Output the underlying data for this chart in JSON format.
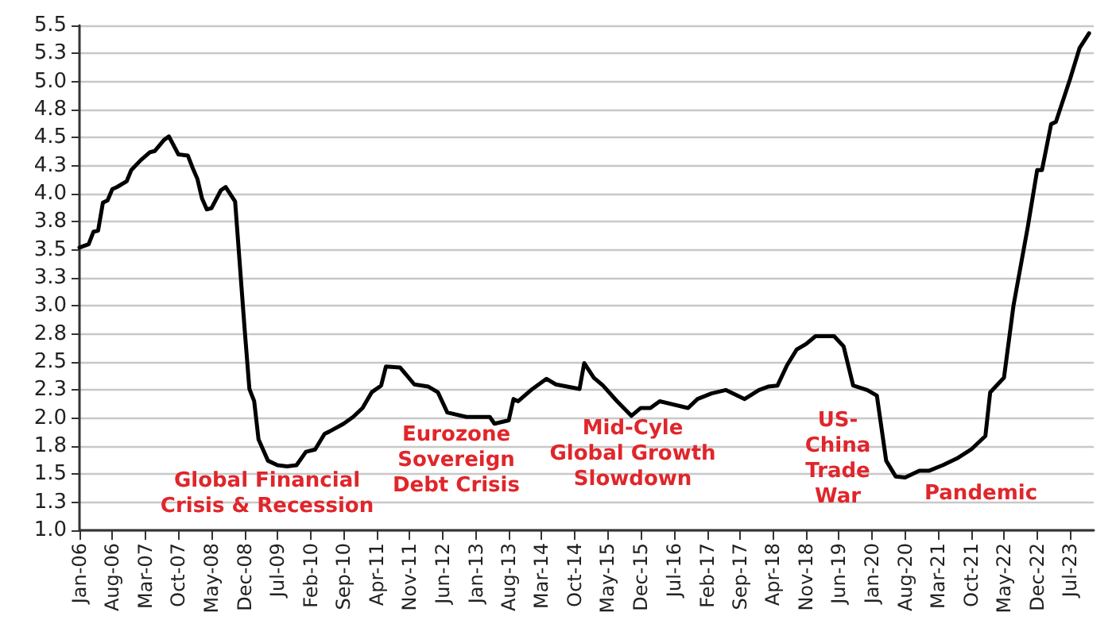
{
  "chart_data": {
    "type": "line",
    "grid": "y",
    "marker": "none",
    "line_style": "solid",
    "xlim": [
      "2006-01",
      "2023-12"
    ],
    "xticks": [
      {
        "value": "2006-01",
        "label": "Jan-06"
      },
      {
        "value": "2006-08",
        "label": "Aug-06"
      },
      {
        "value": "2007-03",
        "label": "Mar-07"
      },
      {
        "value": "2007-10",
        "label": "Oct-07"
      },
      {
        "value": "2008-05",
        "label": "May-08"
      },
      {
        "value": "2008-12",
        "label": "Dec-08"
      },
      {
        "value": "2009-07",
        "label": "Jul-09"
      },
      {
        "value": "2010-02",
        "label": "Feb-10"
      },
      {
        "value": "2010-09",
        "label": "Sep-10"
      },
      {
        "value": "2011-04",
        "label": "Apr-11"
      },
      {
        "value": "2011-11",
        "label": "Nov-11"
      },
      {
        "value": "2012-06",
        "label": "Jun-12"
      },
      {
        "value": "2013-01",
        "label": "Jan-13"
      },
      {
        "value": "2013-08",
        "label": "Aug-13"
      },
      {
        "value": "2014-03",
        "label": "Mar-14"
      },
      {
        "value": "2014-10",
        "label": "Oct-14"
      },
      {
        "value": "2015-05",
        "label": "May-15"
      },
      {
        "value": "2015-12",
        "label": "Dec-15"
      },
      {
        "value": "2016-07",
        "label": "Jul-16"
      },
      {
        "value": "2017-02",
        "label": "Feb-17"
      },
      {
        "value": "2017-09",
        "label": "Sep-17"
      },
      {
        "value": "2018-04",
        "label": "Apr-18"
      },
      {
        "value": "2018-11",
        "label": "Nov-18"
      },
      {
        "value": "2019-06",
        "label": "Jun-19"
      },
      {
        "value": "2020-01",
        "label": "Jan-20"
      },
      {
        "value": "2020-08",
        "label": "Aug-20"
      },
      {
        "value": "2021-03",
        "label": "Mar-21"
      },
      {
        "value": "2021-10",
        "label": "Oct-21"
      },
      {
        "value": "2022-05",
        "label": "May-22"
      },
      {
        "value": "2022-12",
        "label": "Dec-22"
      },
      {
        "value": "2023-07",
        "label": "Jul-23"
      }
    ],
    "ylim": [
      1.0,
      5.5
    ],
    "yticks": [
      {
        "value": 1.0,
        "label": "1.0"
      },
      {
        "value": 1.25,
        "label": "1.3"
      },
      {
        "value": 1.5,
        "label": "1.5"
      },
      {
        "value": 1.75,
        "label": "1.8"
      },
      {
        "value": 2.0,
        "label": "2.0"
      },
      {
        "value": 2.25,
        "label": "2.3"
      },
      {
        "value": 2.5,
        "label": "2.5"
      },
      {
        "value": 2.75,
        "label": "2.8"
      },
      {
        "value": 3.0,
        "label": "3.0"
      },
      {
        "value": 3.25,
        "label": "3.3"
      },
      {
        "value": 3.5,
        "label": "3.5"
      },
      {
        "value": 3.75,
        "label": "3.8"
      },
      {
        "value": 4.0,
        "label": "4.0"
      },
      {
        "value": 4.25,
        "label": "4.3"
      },
      {
        "value": 4.5,
        "label": "4.5"
      },
      {
        "value": 4.75,
        "label": "4.8"
      },
      {
        "value": 5.0,
        "label": "5.0"
      },
      {
        "value": 5.25,
        "label": "5.3"
      },
      {
        "value": 5.5,
        "label": "5.5"
      }
    ],
    "series": [
      {
        "color": "#000000",
        "x": [
          "2006-01",
          "2006-03",
          "2006-04",
          "2006-05",
          "2006-06",
          "2006-07",
          "2006-08",
          "2006-09",
          "2006-11",
          "2006-12",
          "2007-02",
          "2007-04",
          "2007-05",
          "2007-07",
          "2007-08",
          "2007-10",
          "2007-12",
          "2008-01",
          "2008-02",
          "2008-03",
          "2008-04",
          "2008-05",
          "2008-07",
          "2008-08",
          "2008-10",
          "2008-12",
          "2009-01",
          "2009-02",
          "2009-03",
          "2009-05",
          "2009-07",
          "2009-09",
          "2009-11",
          "2010-01",
          "2010-03",
          "2010-05",
          "2010-06",
          "2010-09",
          "2010-11",
          "2011-01",
          "2011-03",
          "2011-05",
          "2011-06",
          "2011-09",
          "2011-12",
          "2012-03",
          "2012-05",
          "2012-07",
          "2012-11",
          "2013-04",
          "2013-05",
          "2013-08",
          "2013-09",
          "2013-10",
          "2014-01",
          "2014-04",
          "2014-06",
          "2014-11",
          "2014-12",
          "2015-02",
          "2015-04",
          "2015-07",
          "2015-10",
          "2015-12",
          "2016-02",
          "2016-04",
          "2016-10",
          "2016-12",
          "2017-03",
          "2017-06",
          "2017-10",
          "2018-01",
          "2018-03",
          "2018-05",
          "2018-07",
          "2018-09",
          "2018-11",
          "2019-01",
          "2019-05",
          "2019-07",
          "2019-09",
          "2019-12",
          "2020-02",
          "2020-04",
          "2020-06",
          "2020-08",
          "2020-11",
          "2021-01",
          "2021-04",
          "2021-07",
          "2021-10",
          "2022-01",
          "2022-02",
          "2022-05",
          "2022-07",
          "2022-10",
          "2022-12",
          "2023-01",
          "2023-03",
          "2023-04",
          "2023-07",
          "2023-09",
          "2023-11"
        ],
        "values": [
          3.52,
          3.55,
          3.66,
          3.67,
          3.92,
          3.94,
          4.04,
          4.06,
          4.11,
          4.21,
          4.3,
          4.37,
          4.38,
          4.48,
          4.51,
          4.35,
          4.34,
          4.23,
          4.13,
          3.96,
          3.86,
          3.87,
          4.03,
          4.06,
          3.93,
          2.8,
          2.26,
          2.15,
          1.81,
          1.62,
          1.58,
          1.57,
          1.58,
          1.7,
          1.72,
          1.86,
          1.88,
          1.95,
          2.01,
          2.09,
          2.23,
          2.29,
          2.46,
          2.45,
          2.3,
          2.28,
          2.23,
          2.05,
          2.01,
          2.01,
          1.95,
          1.98,
          2.17,
          2.15,
          2.26,
          2.35,
          2.3,
          2.26,
          2.49,
          2.36,
          2.29,
          2.15,
          2.02,
          2.09,
          2.09,
          2.15,
          2.09,
          2.17,
          2.22,
          2.25,
          2.17,
          2.25,
          2.28,
          2.29,
          2.47,
          2.61,
          2.66,
          2.73,
          2.73,
          2.64,
          2.29,
          2.25,
          2.2,
          1.62,
          1.48,
          1.47,
          1.53,
          1.53,
          1.58,
          1.64,
          1.72,
          1.84,
          2.23,
          2.36,
          3.0,
          3.7,
          4.21,
          4.21,
          4.62,
          4.64,
          5.02,
          5.3,
          5.43
        ]
      }
    ],
    "annotations": [
      "Global Financial\nCrisis & Recession",
      "Eurozone\nSovereign\nDebt Crisis",
      "Mid-Cyle\nGlobal Growth\nSlowdown",
      "US-\nChina\nTrade\nWar",
      "Pandemic"
    ]
  }
}
